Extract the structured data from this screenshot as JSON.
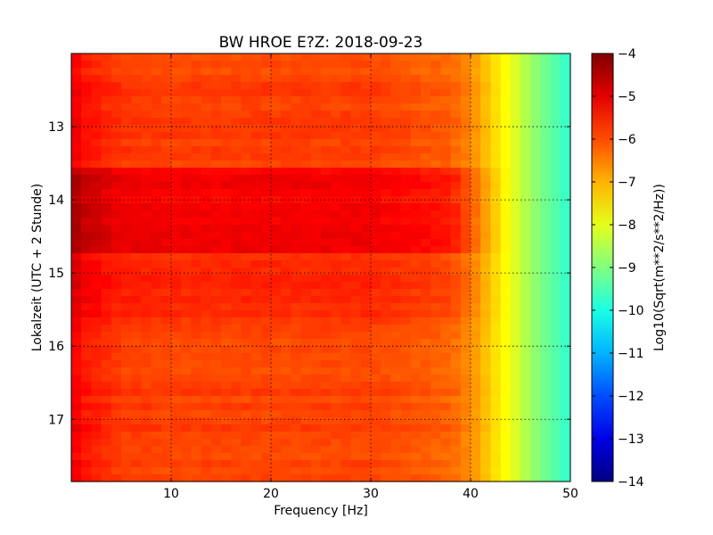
{
  "chart_data": {
    "type": "heatmap",
    "title": "BW HROE E?Z: 2018-09-23",
    "xlabel": "Frequency [Hz]",
    "ylabel": "Lokalzeit (UTC + 2 Stunde)",
    "xlim": [
      0,
      50
    ],
    "ylim": [
      12.0,
      17.85
    ],
    "y_inverted": true,
    "grid": true,
    "x_ticks": [
      10,
      20,
      30,
      40,
      50
    ],
    "y_ticks": [
      13,
      14,
      15,
      16,
      17
    ],
    "colorbar": {
      "label": "Log10(Sqrt(m**2/s**2/Hz))",
      "range": [
        -14,
        -4
      ],
      "ticks": [
        -4,
        -5,
        -6,
        -7,
        -8,
        -9,
        -10,
        -11,
        -12,
        -13,
        -14
      ],
      "colormap": "jet"
    },
    "levels_by_frequency": {
      "frequency_hz": [
        0,
        1,
        5,
        10,
        20,
        30,
        38,
        40,
        42,
        44,
        46,
        48,
        50
      ],
      "log10_amplitude": [
        -5.0,
        -5.4,
        -5.8,
        -5.9,
        -5.9,
        -5.9,
        -6.2,
        -6.6,
        -7.3,
        -7.9,
        -8.7,
        -9.3,
        -9.8
      ]
    },
    "time_bands": [
      {
        "from_hour": 13.55,
        "to_hour": 14.7,
        "offset": 0.7
      },
      {
        "from_hour": 14.7,
        "to_hour": 15.6,
        "offset": 0.25
      }
    ]
  }
}
